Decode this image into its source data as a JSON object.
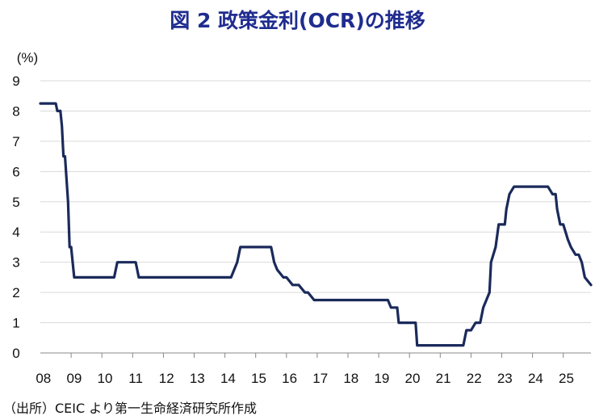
{
  "title": "図 2  政策金利(OCR)の推移",
  "source": "（出所）CEIC より第一生命経済研究所作成",
  "chart_data": {
    "type": "line",
    "title": "図 2  政策金利(OCR)の推移",
    "ylabel": "(%)",
    "xlabel": "",
    "ylim": [
      0,
      9
    ],
    "yticks": [
      "0",
      "1",
      "2",
      "3",
      "4",
      "5",
      "6",
      "7",
      "8",
      "9"
    ],
    "xlim": [
      2008.0,
      2025.9
    ],
    "xtick_labels": [
      "08",
      "09",
      "10",
      "11",
      "12",
      "13",
      "14",
      "15",
      "16",
      "17",
      "18",
      "19",
      "20",
      "21",
      "22",
      "23",
      "24",
      "25"
    ],
    "grid": "horizontal",
    "color": "#1a2a5a",
    "series": [
      {
        "x": [
          2008.0,
          2008.5,
          2008.55,
          2008.65,
          2008.7,
          2008.75,
          2008.8,
          2008.9,
          2008.95,
          2009.0,
          2009.05,
          2009.1,
          2009.2,
          2009.3,
          2010.4,
          2010.5,
          2011.1,
          2011.2,
          2014.1,
          2014.2,
          2014.3,
          2014.4,
          2014.5,
          2015.4,
          2015.5,
          2015.6,
          2015.7,
          2015.9,
          2016.0,
          2016.2,
          2016.4,
          2016.6,
          2016.7,
          2016.9,
          2017.0,
          2019.3,
          2019.4,
          2019.6,
          2019.65,
          2020.2,
          2020.25,
          2021.75,
          2021.85,
          2022.0,
          2022.15,
          2022.3,
          2022.4,
          2022.6,
          2022.65,
          2022.8,
          2022.9,
          2023.1,
          2023.15,
          2023.25,
          2023.4,
          2024.5,
          2024.65,
          2024.75,
          2024.8,
          2024.9,
          2025.0,
          2025.15,
          2025.25,
          2025.4,
          2025.5,
          2025.6,
          2025.7,
          2025.9
        ],
        "y": [
          8.25,
          8.25,
          8.0,
          8.0,
          7.5,
          6.5,
          6.5,
          5.0,
          3.5,
          3.5,
          3.0,
          2.5,
          2.5,
          2.5,
          2.5,
          3.0,
          3.0,
          2.5,
          2.5,
          2.5,
          2.75,
          3.0,
          3.0,
          3.0,
          3.0,
          3.0,
          2.75,
          2.5,
          2.5,
          2.25,
          2.25,
          2.0,
          2.0,
          1.75,
          1.75,
          1.75,
          1.5,
          1.5,
          1.0,
          1.0,
          0.25,
          0.25,
          0.75,
          0.75,
          1.0,
          1.0,
          1.5,
          2.0,
          3.0,
          3.5,
          4.25,
          4.25,
          4.75,
          5.25,
          5.5,
          5.5,
          5.25,
          5.25,
          4.75,
          4.25,
          4.25,
          3.75,
          3.5,
          3.25,
          3.25,
          3.0,
          2.5,
          2.25
        ]
      }
    ]
  }
}
